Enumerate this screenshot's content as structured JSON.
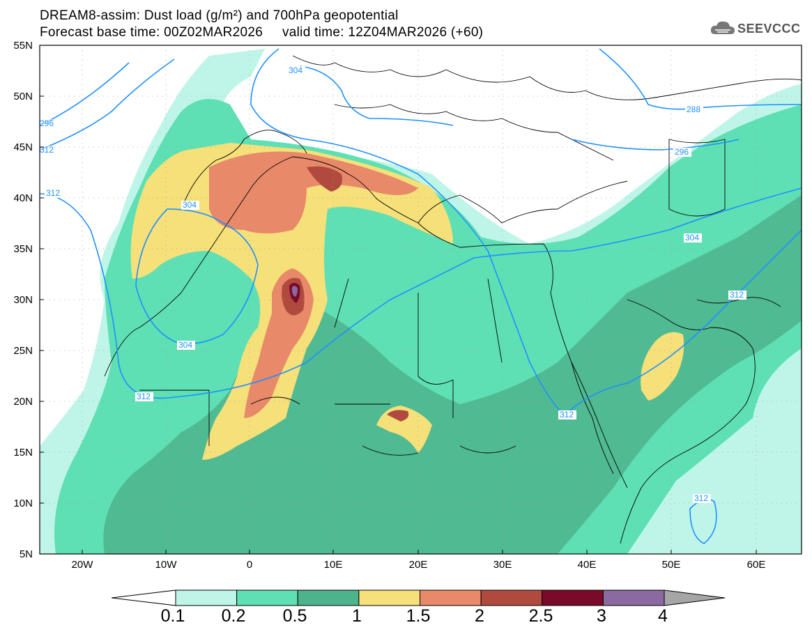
{
  "header": {
    "line1": "DREAM8-assim: Dust load (g/m²) and 700hPa geopotential",
    "line2": "Forecast base time: 00Z02MAR2026     valid time: 12Z04MAR2026 (+60)"
  },
  "logo": {
    "icon": "cloud-icon",
    "text": "SEEVCCC"
  },
  "map": {
    "lat_labels": [
      "55N",
      "50N",
      "45N",
      "40N",
      "35N",
      "30N",
      "25N",
      "20N",
      "15N",
      "10N",
      "5N"
    ],
    "lon_labels": [
      "20W",
      "10W",
      "0",
      "10E",
      "20E",
      "30E",
      "40E",
      "50E",
      "60E"
    ],
    "contour_labels": [
      "296",
      "304",
      "312",
      "304",
      "304",
      "312",
      "312",
      "312",
      "288",
      "296",
      "304",
      "312",
      "312"
    ],
    "colors": {
      "ocean": "#ffffff",
      "border": "#000000",
      "contour": "#1e90ff"
    }
  },
  "colorbar": {
    "labels": [
      "0.1",
      "0.2",
      "0.5",
      "1",
      "1.5",
      "2",
      "2.5",
      "3",
      "4"
    ],
    "colors": [
      "#bff5e8",
      "#5ee0b4",
      "#4db38c",
      "#f5e07a",
      "#e8896a",
      "#b04a3e",
      "#7a0a2a",
      "#8a6aa0",
      "#a6a6a6"
    ]
  }
}
